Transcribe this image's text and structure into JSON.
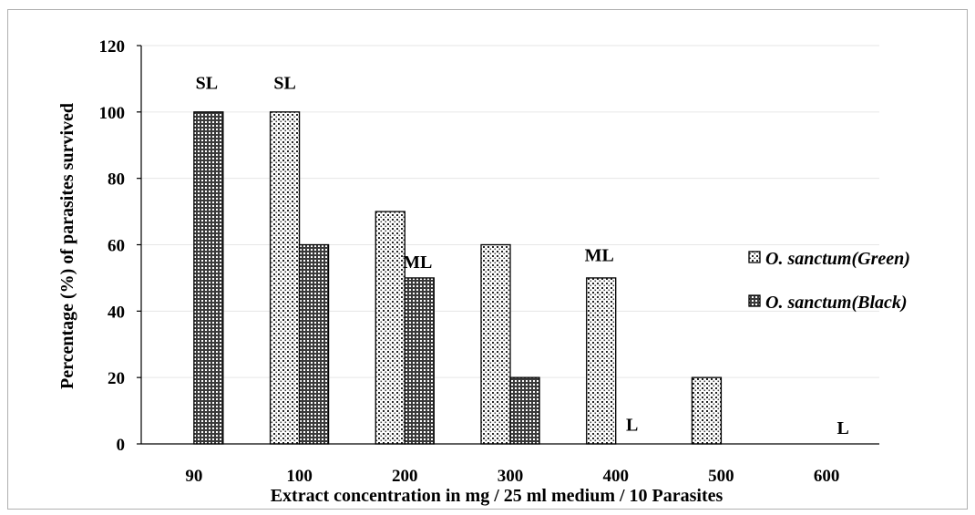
{
  "chart_data": {
    "type": "bar",
    "categories": [
      "90",
      "100",
      "200",
      "300",
      "400",
      "500",
      "600"
    ],
    "series": [
      {
        "name": "O. sanctum(Green)",
        "values": [
          null,
          100,
          70,
          60,
          50,
          20,
          null
        ],
        "pattern": "dots"
      },
      {
        "name": "O. sanctum(Black)",
        "values": [
          100,
          60,
          50,
          20,
          null,
          null,
          null
        ],
        "pattern": "grid"
      }
    ],
    "xlabel": "Extract concentration in mg / 25 ml medium / 10 Parasites",
    "ylabel": "Percentage (%)  of parasites survived",
    "ylim": [
      0,
      120
    ],
    "yticks": [
      "0",
      "20",
      "40",
      "60",
      "80",
      "100",
      "120"
    ],
    "annotations": [
      {
        "text": "SL",
        "category": "90",
        "y": 107
      },
      {
        "text": "SL",
        "category": "100",
        "y": 107
      },
      {
        "text": "ML",
        "category": "200",
        "y": 53
      },
      {
        "text": "ML",
        "category": "400",
        "y": 55
      },
      {
        "text": "L",
        "category": "400",
        "y": 4
      },
      {
        "text": "L",
        "category": "600",
        "y": 3
      }
    ],
    "legend_position": "right",
    "grid": true
  }
}
